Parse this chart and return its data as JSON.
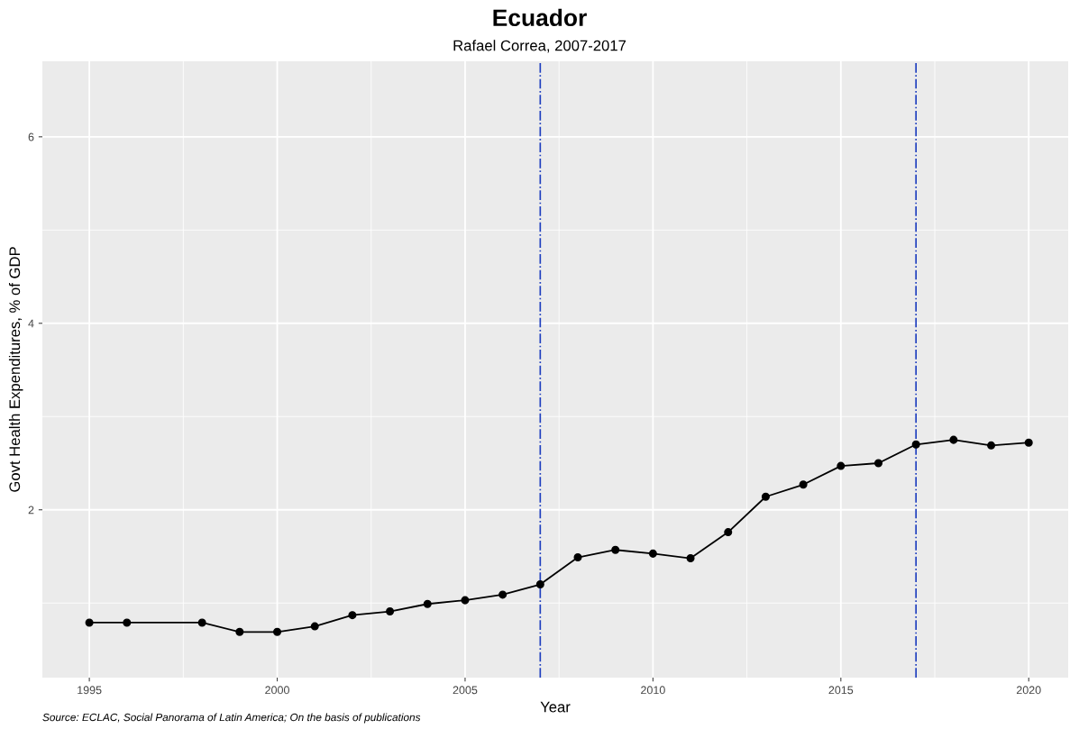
{
  "chart_data": {
    "type": "line",
    "title": "Ecuador",
    "subtitle": "Rafael Correa, 2007-2017",
    "xlabel": "Year",
    "ylabel": "Govt Health Expenditures, % of GDP",
    "annotations": [
      "Source: ECLAC, Social Panorama of Latin America; On the basis of publications"
    ],
    "x": [
      1995,
      1996,
      1998,
      1999,
      2000,
      2001,
      2002,
      2003,
      2004,
      2005,
      2006,
      2007,
      2008,
      2009,
      2010,
      2011,
      2012,
      2013,
      2014,
      2015,
      2016,
      2017,
      2018,
      2019,
      2020
    ],
    "series": [
      {
        "color": "#000000",
        "values": [
          0.79,
          0.79,
          0.79,
          0.69,
          0.69,
          0.75,
          0.87,
          0.91,
          0.99,
          1.03,
          1.09,
          1.2,
          1.49,
          1.57,
          1.53,
          1.48,
          1.76,
          2.14,
          2.27,
          2.47,
          2.5,
          2.7,
          2.75,
          2.69,
          2.72
        ]
      }
    ],
    "xlim": [
      1993.75,
      2021.05
    ],
    "xticks": [
      1995,
      2000,
      2005,
      2010,
      2015,
      2020
    ],
    "ylim": [
      0.2,
      6.81
    ],
    "yticks": [
      2,
      4,
      6
    ],
    "ref_lines": [
      {
        "axis": "x",
        "value": 2007,
        "color": "#1f3fbf",
        "line_style": "dashdot"
      },
      {
        "axis": "x",
        "value": 2017,
        "color": "#1f3fbf",
        "line_style": "dashdot"
      }
    ],
    "grid": true,
    "marker": "circle",
    "line_style": "solid",
    "legend": false
  }
}
